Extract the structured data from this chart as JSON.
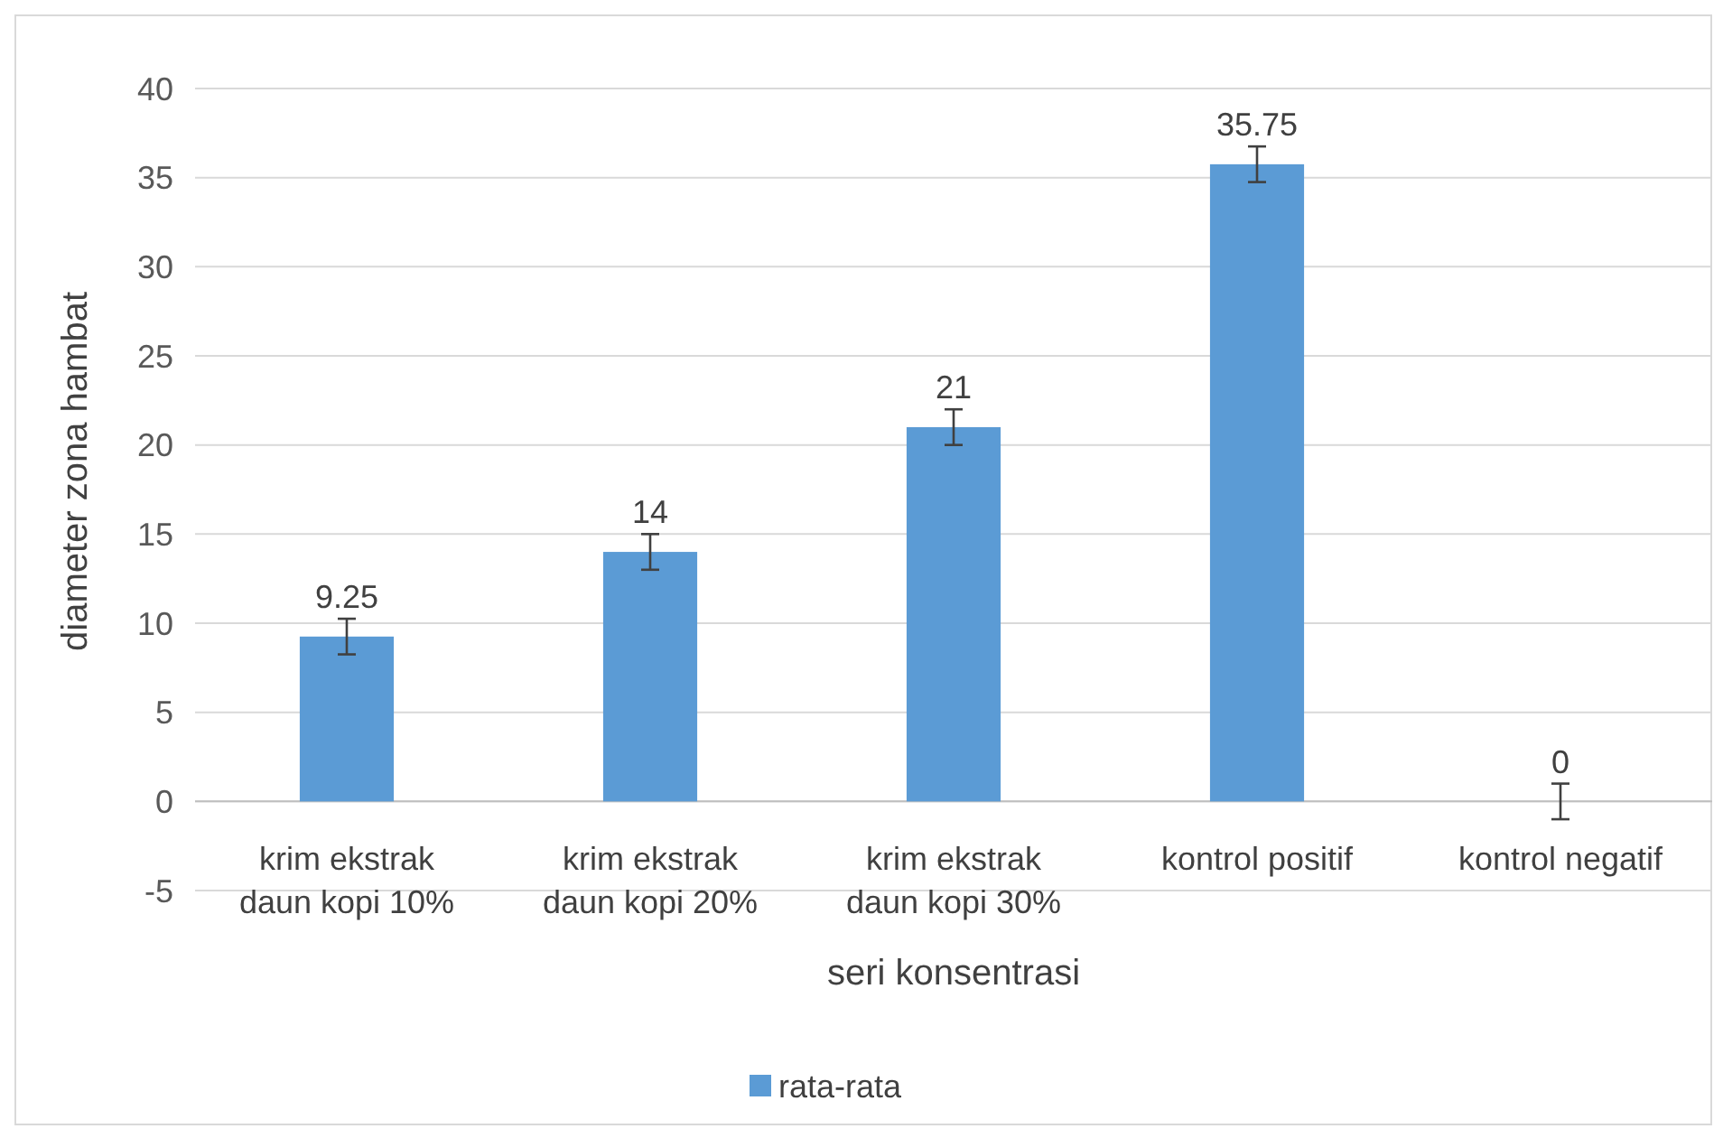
{
  "chart_data": {
    "type": "bar",
    "xlabel": "seri konsentrasi",
    "ylabel": "diameter zona hambat",
    "categories": [
      "krim ekstrak daun kopi 10%",
      "krim ekstrak daun kopi 20%",
      "krim ekstrak daun kopi 30%",
      "kontrol positif",
      "kontrol negatif"
    ],
    "series": [
      {
        "name": "rata-rata",
        "color": "#5b9bd5",
        "values": [
          9.25,
          14,
          21,
          35.75,
          0
        ],
        "errors": [
          1,
          1,
          1,
          1,
          1
        ]
      }
    ],
    "data_labels": true,
    "ylim": [
      -5,
      40
    ],
    "yticks": [
      -5,
      0,
      5,
      10,
      15,
      20,
      25,
      30,
      35,
      40
    ],
    "grid": "y",
    "legend": "bottom"
  }
}
